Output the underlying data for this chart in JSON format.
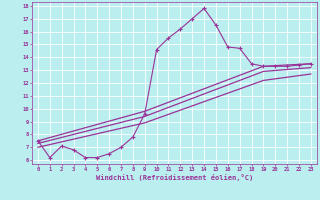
{
  "xlabel": "Windchill (Refroidissement éolien,°C)",
  "background_color": "#bbeeee",
  "grid_color": "#ffffff",
  "line_color": "#993399",
  "xlim": [
    -0.5,
    23.5
  ],
  "ylim": [
    5.7,
    18.3
  ],
  "xticks": [
    0,
    1,
    2,
    3,
    4,
    5,
    6,
    7,
    8,
    9,
    10,
    11,
    12,
    13,
    14,
    15,
    16,
    17,
    18,
    19,
    20,
    21,
    22,
    23
  ],
  "yticks": [
    6,
    7,
    8,
    9,
    10,
    11,
    12,
    13,
    14,
    15,
    16,
    17,
    18
  ],
  "line1_x": [
    0,
    1,
    2,
    3,
    4,
    5,
    6,
    7,
    8,
    9,
    10,
    11,
    12,
    13,
    14,
    15,
    16,
    17,
    18,
    19,
    20,
    21,
    22,
    23
  ],
  "line1_y": [
    7.5,
    6.2,
    7.1,
    6.8,
    6.2,
    6.2,
    6.5,
    7.0,
    7.8,
    9.6,
    14.6,
    15.5,
    16.2,
    17.0,
    17.8,
    16.5,
    14.8,
    14.7,
    13.5,
    13.3,
    13.3,
    13.3,
    13.4,
    13.5
  ],
  "line2_x": [
    0,
    9,
    19,
    23
  ],
  "line2_y": [
    7.5,
    9.8,
    13.3,
    13.5
  ],
  "line3_x": [
    0,
    9,
    19,
    23
  ],
  "line3_y": [
    7.3,
    9.4,
    12.9,
    13.2
  ],
  "line4_x": [
    0,
    9,
    19,
    23
  ],
  "line4_y": [
    7.0,
    8.9,
    12.2,
    12.7
  ]
}
